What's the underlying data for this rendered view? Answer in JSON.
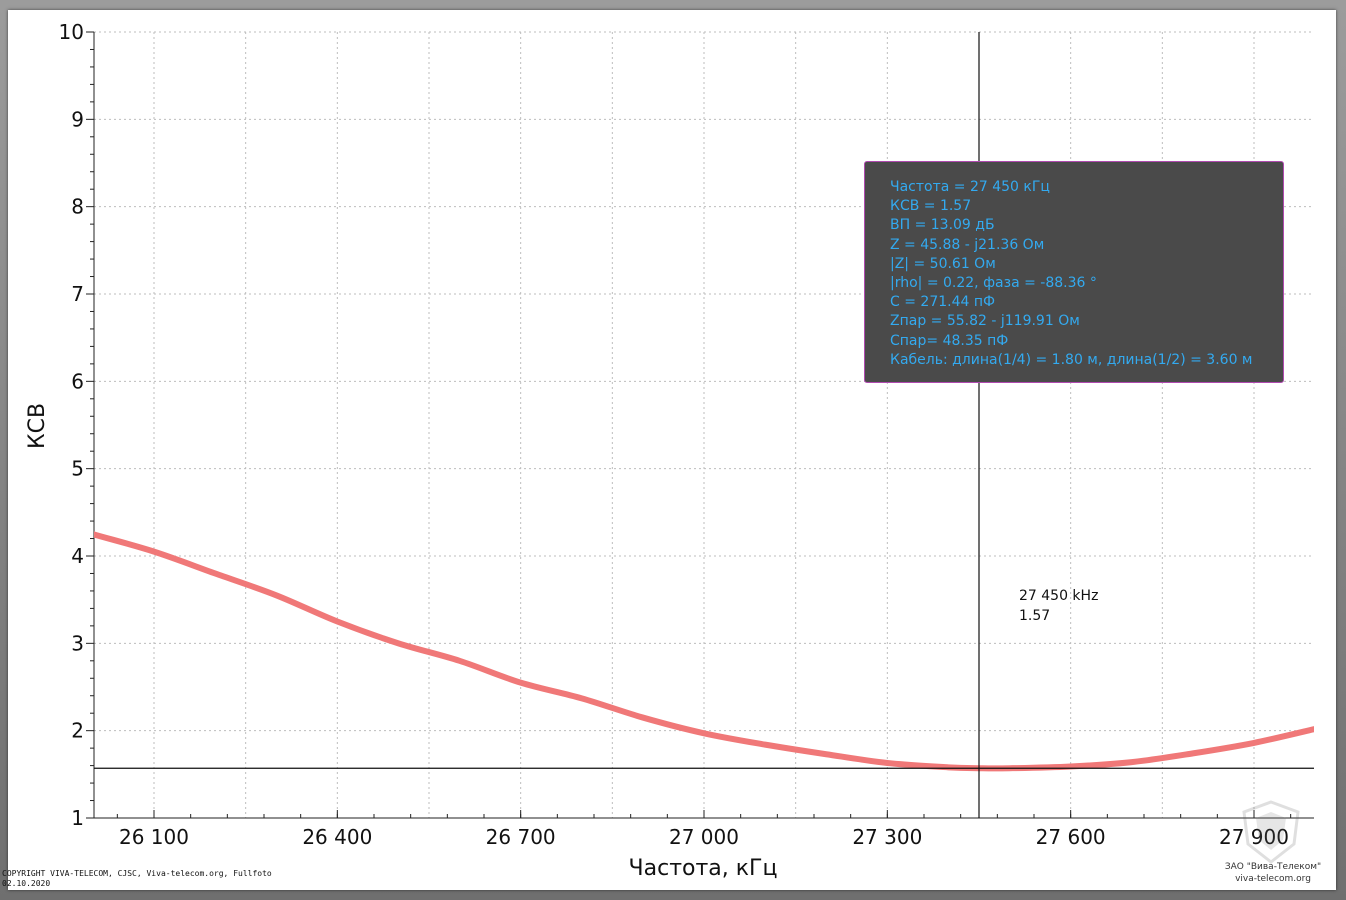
{
  "chart_data": {
    "type": "line",
    "xlabel": "Частота, кГц",
    "ylabel": "КСВ",
    "xlim": [
      25900,
      27900
    ],
    "ylim": [
      1,
      10
    ],
    "x_ticks": [
      26100,
      26400,
      26700,
      27000,
      27300,
      27600,
      27900
    ],
    "x_tick_labels": [
      "26 100",
      "26 400",
      "26 700",
      "27 000",
      "27 300",
      "27 600",
      "27 900"
    ],
    "y_ticks": [
      1,
      2,
      3,
      4,
      5,
      6,
      7,
      8,
      9,
      10
    ],
    "y_tick_labels": [
      "1",
      "2",
      "3",
      "4",
      "5",
      "6",
      "7",
      "8",
      "9",
      "10"
    ],
    "grid": true,
    "series": [
      {
        "color": "#f07878",
        "x": [
          25900,
          26000,
          26100,
          26200,
          26300,
          26400,
          26500,
          26600,
          26700,
          26800,
          26900,
          27000,
          27100,
          27200,
          27300,
          27400,
          27450,
          27500,
          27600,
          27700,
          27800,
          27900,
          28000
        ],
        "y": [
          4.45,
          4.25,
          4.05,
          3.8,
          3.55,
          3.25,
          3.0,
          2.8,
          2.55,
          2.37,
          2.15,
          1.97,
          1.84,
          1.73,
          1.63,
          1.58,
          1.57,
          1.57,
          1.59,
          1.64,
          1.74,
          1.86,
          2.02
        ]
      }
    ],
    "marker": {
      "x": 27450,
      "y": 1.57,
      "label_freq": "27 450 kHz",
      "label_value": "1.57"
    },
    "reference_line_y": 1.57,
    "info_box": [
      "Частота = 27 450 кГц",
      "КСВ = 1.57",
      "ВП = 13.09 дБ",
      "Z = 45.88 - j21.36 Ом",
      "|Z| = 50.61 Ом",
      "|rho| = 0.22, фаза = -88.36 °",
      "C = 271.44 пФ",
      "Zпар = 55.82 - j119.91 Ом",
      "Cпар= 48.35 пФ",
      "Кабель: длина(1/4) = 1.80 м, длина(1/2) = 3.60 м"
    ]
  },
  "footer": {
    "copyright": "COPYRIGHT VIVA-TELECOM, CJSC, Viva-telecom.org, Fullfoto",
    "date": "02.10.2020",
    "company": "ЗАО \"Вива-Телеком\"",
    "website": "viva-telecom.org"
  },
  "colors": {
    "series": "#f07878",
    "info_bg": "#4a4a4a",
    "info_text": "#33aaf0",
    "info_border": "#b04ab0"
  }
}
